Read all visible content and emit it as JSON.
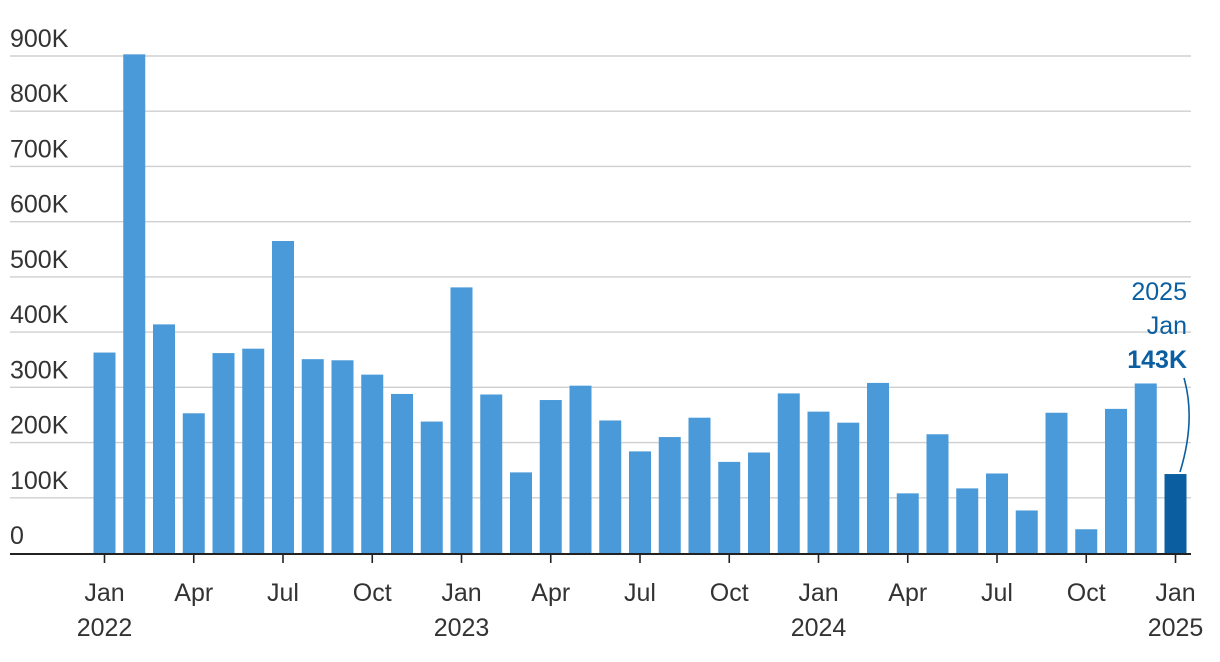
{
  "chart_data": {
    "type": "bar",
    "title": "",
    "xlabel": "",
    "ylabel": "",
    "ylim": [
      0,
      900000
    ],
    "yticks": [
      0,
      100000,
      200000,
      300000,
      400000,
      500000,
      600000,
      700000,
      800000,
      900000
    ],
    "ytick_labels": [
      "0",
      "100K",
      "200K",
      "300K",
      "400K",
      "500K",
      "600K",
      "700K",
      "800K",
      "900K"
    ],
    "grid": true,
    "categories": [
      "2022-01",
      "2022-02",
      "2022-03",
      "2022-04",
      "2022-05",
      "2022-06",
      "2022-07",
      "2022-08",
      "2022-09",
      "2022-10",
      "2022-11",
      "2022-12",
      "2023-01",
      "2023-02",
      "2023-03",
      "2023-04",
      "2023-05",
      "2023-06",
      "2023-07",
      "2023-08",
      "2023-09",
      "2023-10",
      "2023-11",
      "2023-12",
      "2024-01",
      "2024-02",
      "2024-03",
      "2024-04",
      "2024-05",
      "2024-06",
      "2024-07",
      "2024-08",
      "2024-09",
      "2024-10",
      "2024-11",
      "2024-12",
      "2025-01"
    ],
    "values": [
      363000,
      903000,
      414000,
      253000,
      362000,
      370000,
      565000,
      351000,
      349000,
      323000,
      288000,
      238000,
      481000,
      287000,
      146000,
      277000,
      303000,
      240000,
      184000,
      210000,
      245000,
      165000,
      182000,
      289000,
      256000,
      236000,
      308000,
      108000,
      215000,
      117000,
      144000,
      77000,
      254000,
      43000,
      261000,
      307000,
      143000
    ],
    "x_ticks": [
      {
        "category": "2022-01",
        "label": "Jan",
        "year": "2022"
      },
      {
        "category": "2022-04",
        "label": "Apr",
        "year": ""
      },
      {
        "category": "2022-07",
        "label": "Jul",
        "year": ""
      },
      {
        "category": "2022-10",
        "label": "Oct",
        "year": ""
      },
      {
        "category": "2023-01",
        "label": "Jan",
        "year": "2023"
      },
      {
        "category": "2023-04",
        "label": "Apr",
        "year": ""
      },
      {
        "category": "2023-07",
        "label": "Jul",
        "year": ""
      },
      {
        "category": "2023-10",
        "label": "Oct",
        "year": ""
      },
      {
        "category": "2024-01",
        "label": "Jan",
        "year": "2024"
      },
      {
        "category": "2024-04",
        "label": "Apr",
        "year": ""
      },
      {
        "category": "2024-07",
        "label": "Jul",
        "year": ""
      },
      {
        "category": "2024-10",
        "label": "Oct",
        "year": ""
      },
      {
        "category": "2025-01",
        "label": "Jan",
        "year": "2025"
      }
    ],
    "highlight": {
      "category": "2025-01",
      "line1": "2025",
      "line2": "Jan",
      "value_label": "143K"
    },
    "colors": {
      "bar": "#4a9ad9",
      "highlight": "#0b5fa0",
      "annotation": "#0b5fa0"
    }
  }
}
